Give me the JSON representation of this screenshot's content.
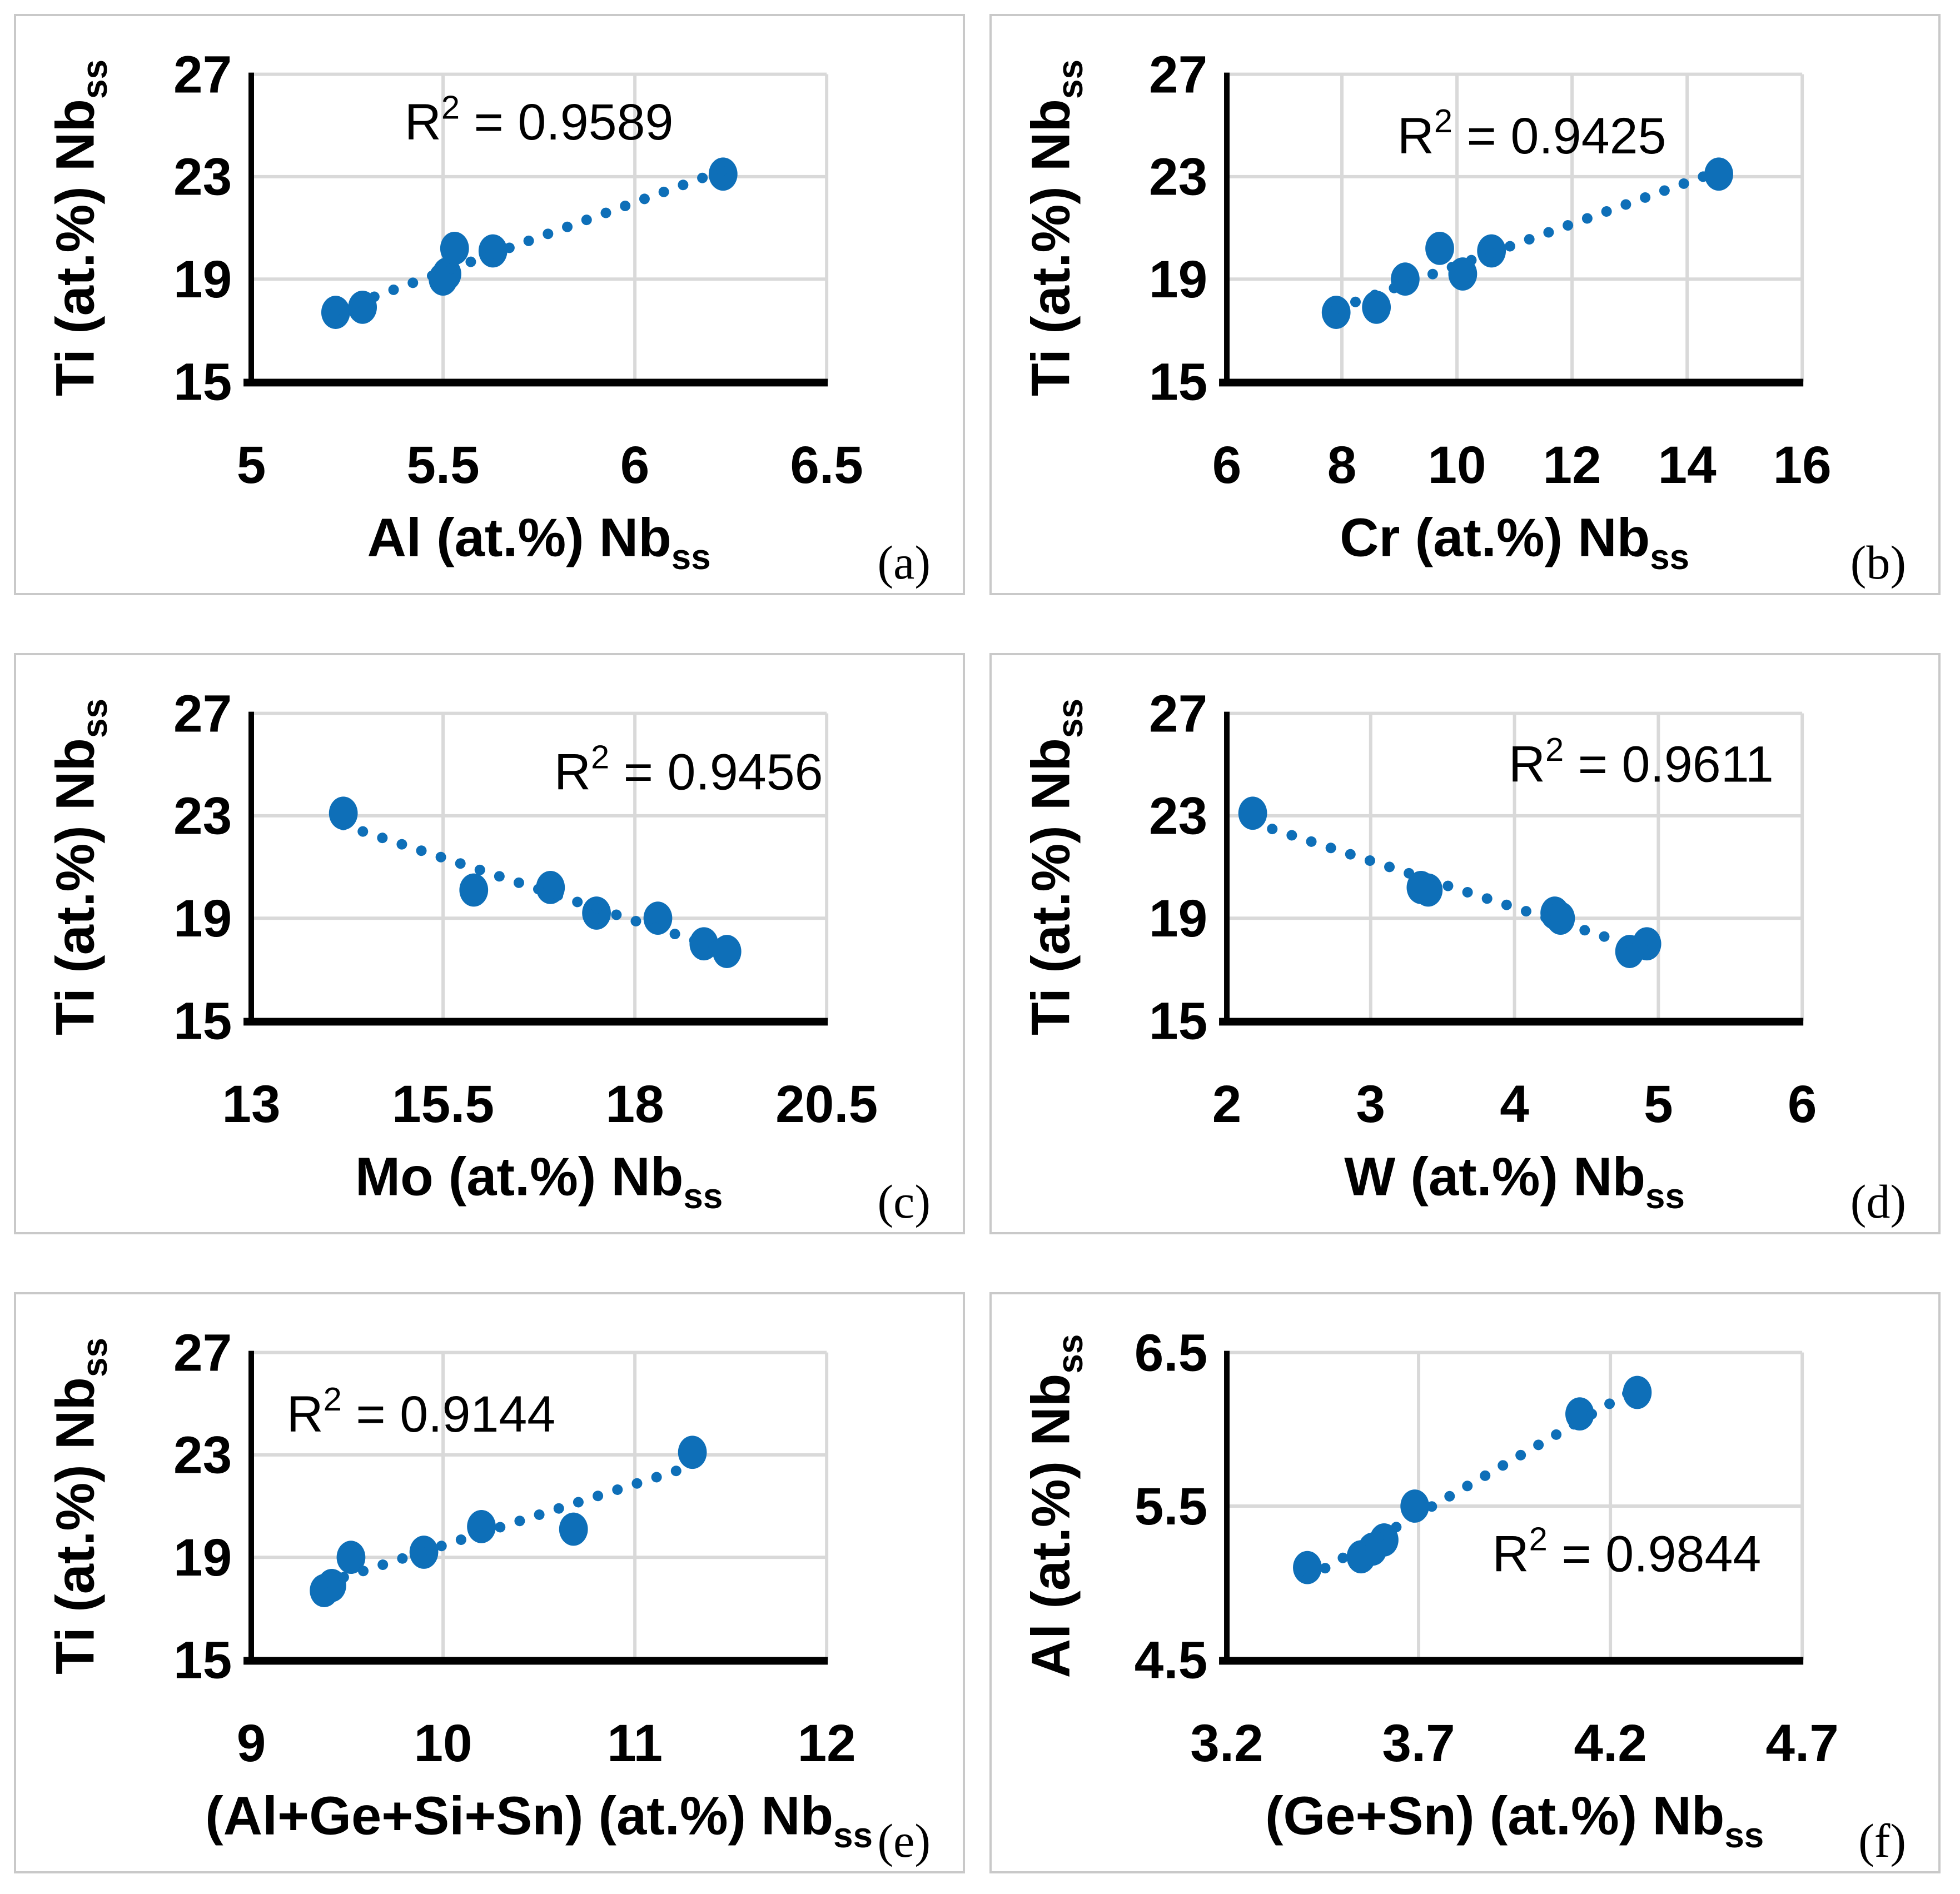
{
  "figure": {
    "description": "Six scatter plots with dotted linear trendlines showing solid-solution composition correlations",
    "marker_color": "#0e6fb8",
    "grid_color": "#d9d9d9",
    "axis_color": "#000000",
    "panel_border_color": "#c9c9c9",
    "background_color": "#ffffff",
    "text_color": "#000000"
  },
  "chart_data": [
    {
      "id": "a",
      "type": "scatter",
      "letter": "(a)",
      "r_squared": {
        "base": "R",
        "sup": "2",
        "rest": " = 0.9589"
      },
      "r2_pos": [
        0.5,
        0.155
      ],
      "x_axis": {
        "title": "Al (at.%) Nb",
        "title_sub": "ss",
        "min": 5,
        "max": 6.5,
        "tick_values": [
          5,
          5.5,
          6,
          6.5
        ],
        "tick_labels": [
          "5",
          "5.5",
          "6",
          "6.5"
        ]
      },
      "y_axis": {
        "title": "Ti (at.%) Nb",
        "title_sub": "ss",
        "min": 15,
        "max": 27,
        "tick_values": [
          15,
          19,
          23,
          27
        ],
        "tick_labels": [
          "15",
          "19",
          "23",
          "27"
        ]
      },
      "points": [
        [
          5.22,
          17.7
        ],
        [
          5.29,
          17.9
        ],
        [
          5.5,
          19.0
        ],
        [
          5.51,
          19.2
        ],
        [
          5.53,
          20.2
        ],
        [
          5.63,
          20.1
        ],
        [
          6.23,
          23.1
        ]
      ],
      "trendline": "dotted-linear"
    },
    {
      "id": "b",
      "type": "scatter",
      "letter": "(b)",
      "r_squared": {
        "base": "R",
        "sup": "2",
        "rest": " = 0.9425"
      },
      "r2_pos": [
        0.53,
        0.2
      ],
      "x_axis": {
        "title": "Cr (at.%) Nb",
        "title_sub": "ss",
        "min": 6,
        "max": 16,
        "tick_values": [
          6,
          8,
          10,
          12,
          14,
          16
        ],
        "tick_labels": [
          "6",
          "8",
          "10",
          "12",
          "14",
          "16"
        ]
      },
      "y_axis": {
        "title": "Ti (at.%) Nb",
        "title_sub": "ss",
        "min": 15,
        "max": 27,
        "tick_values": [
          15,
          19,
          23,
          27
        ],
        "tick_labels": [
          "15",
          "19",
          "23",
          "27"
        ]
      },
      "points": [
        [
          7.9,
          17.7
        ],
        [
          8.6,
          17.9
        ],
        [
          9.1,
          19.0
        ],
        [
          9.7,
          20.2
        ],
        [
          10.1,
          19.2
        ],
        [
          10.6,
          20.1
        ],
        [
          14.55,
          23.1
        ]
      ],
      "trendline": "dotted-linear"
    },
    {
      "id": "c",
      "type": "scatter",
      "letter": "(c)",
      "r_squared": {
        "base": "R",
        "sup": "2",
        "rest": " = 0.9456"
      },
      "r2_pos": [
        0.76,
        0.19
      ],
      "x_axis": {
        "title": "Mo (at.%) Nb",
        "title_sub": "ss",
        "min": 13,
        "max": 20.5,
        "tick_values": [
          13,
          15.5,
          18,
          20.5
        ],
        "tick_labels": [
          "13",
          "15.5",
          "18",
          "20.5"
        ]
      },
      "y_axis": {
        "title": "Ti (at.%) Nb",
        "title_sub": "ss",
        "min": 15,
        "max": 27,
        "tick_values": [
          15,
          19,
          23,
          27
        ],
        "tick_labels": [
          "15",
          "19",
          "23",
          "27"
        ]
      },
      "points": [
        [
          14.2,
          23.1
        ],
        [
          15.9,
          20.1
        ],
        [
          16.9,
          20.2
        ],
        [
          17.5,
          19.2
        ],
        [
          18.3,
          19.0
        ],
        [
          18.9,
          18.0
        ],
        [
          19.2,
          17.7
        ]
      ],
      "trendline": "dotted-linear"
    },
    {
      "id": "d",
      "type": "scatter",
      "letter": "(d)",
      "r_squared": {
        "base": "R",
        "sup": "2",
        "rest": " = 0.9611"
      },
      "r2_pos": [
        0.72,
        0.165
      ],
      "x_axis": {
        "title": "W (at.%) Nb",
        "title_sub": "ss",
        "min": 2,
        "max": 6,
        "tick_values": [
          2,
          3,
          4,
          5,
          6
        ],
        "tick_labels": [
          "2",
          "3",
          "4",
          "5",
          "6"
        ]
      },
      "y_axis": {
        "title": "Ti (at.%) Nb",
        "title_sub": "ss",
        "min": 15,
        "max": 27,
        "tick_values": [
          15,
          19,
          23,
          27
        ],
        "tick_labels": [
          "15",
          "19",
          "23",
          "27"
        ]
      },
      "points": [
        [
          2.18,
          23.1
        ],
        [
          3.35,
          20.2
        ],
        [
          3.4,
          20.1
        ],
        [
          4.28,
          19.2
        ],
        [
          4.32,
          19.0
        ],
        [
          4.8,
          17.7
        ],
        [
          4.92,
          18.0
        ]
      ],
      "trendline": "dotted-linear"
    },
    {
      "id": "e",
      "type": "scatter",
      "letter": "(e)",
      "r_squared": {
        "base": "R",
        "sup": "2",
        "rest": " = 0.9144"
      },
      "r2_pos": [
        0.295,
        0.2
      ],
      "x_axis": {
        "title": "(Al+Ge+Si+Sn) (at.%) Nb",
        "title_sub": "ss",
        "min": 9,
        "max": 12,
        "tick_values": [
          9,
          10,
          11,
          12
        ],
        "tick_labels": [
          "9",
          "10",
          "11",
          "12"
        ]
      },
      "y_axis": {
        "title": "Ti (at.%) Nb",
        "title_sub": "ss",
        "min": 15,
        "max": 27,
        "tick_values": [
          15,
          19,
          23,
          27
        ],
        "tick_labels": [
          "15",
          "19",
          "23",
          "27"
        ]
      },
      "points": [
        [
          9.38,
          17.7
        ],
        [
          9.42,
          17.9
        ],
        [
          9.52,
          19.0
        ],
        [
          9.9,
          19.2
        ],
        [
          10.2,
          20.2
        ],
        [
          10.68,
          20.1
        ],
        [
          11.3,
          23.1
        ]
      ],
      "trendline": "dotted-linear"
    },
    {
      "id": "f",
      "type": "scatter",
      "letter": "(f)",
      "r_squared": {
        "base": "R",
        "sup": "2",
        "rest": " = 0.9844"
      },
      "r2_pos": [
        0.695,
        0.655
      ],
      "x_axis": {
        "title": "(Ge+Sn) (at.%) Nb",
        "title_sub": "ss",
        "min": 3.2,
        "max": 4.7,
        "tick_values": [
          3.2,
          3.7,
          4.2,
          4.7
        ],
        "tick_labels": [
          "3.2",
          "3.7",
          "4.2",
          "4.7"
        ]
      },
      "y_axis": {
        "title": "Al (at.%) Nb",
        "title_sub": "ss",
        "min": 4.5,
        "max": 6.5,
        "tick_values": [
          4.5,
          5.5,
          6.5
        ],
        "tick_labels": [
          "4.5",
          "5.5",
          "6.5"
        ]
      },
      "points": [
        [
          3.41,
          5.1
        ],
        [
          3.55,
          5.17
        ],
        [
          3.58,
          5.22
        ],
        [
          3.61,
          5.28
        ],
        [
          3.69,
          5.5
        ],
        [
          4.12,
          6.1
        ],
        [
          4.27,
          6.24
        ]
      ],
      "trendline": "dotted-linear"
    }
  ]
}
